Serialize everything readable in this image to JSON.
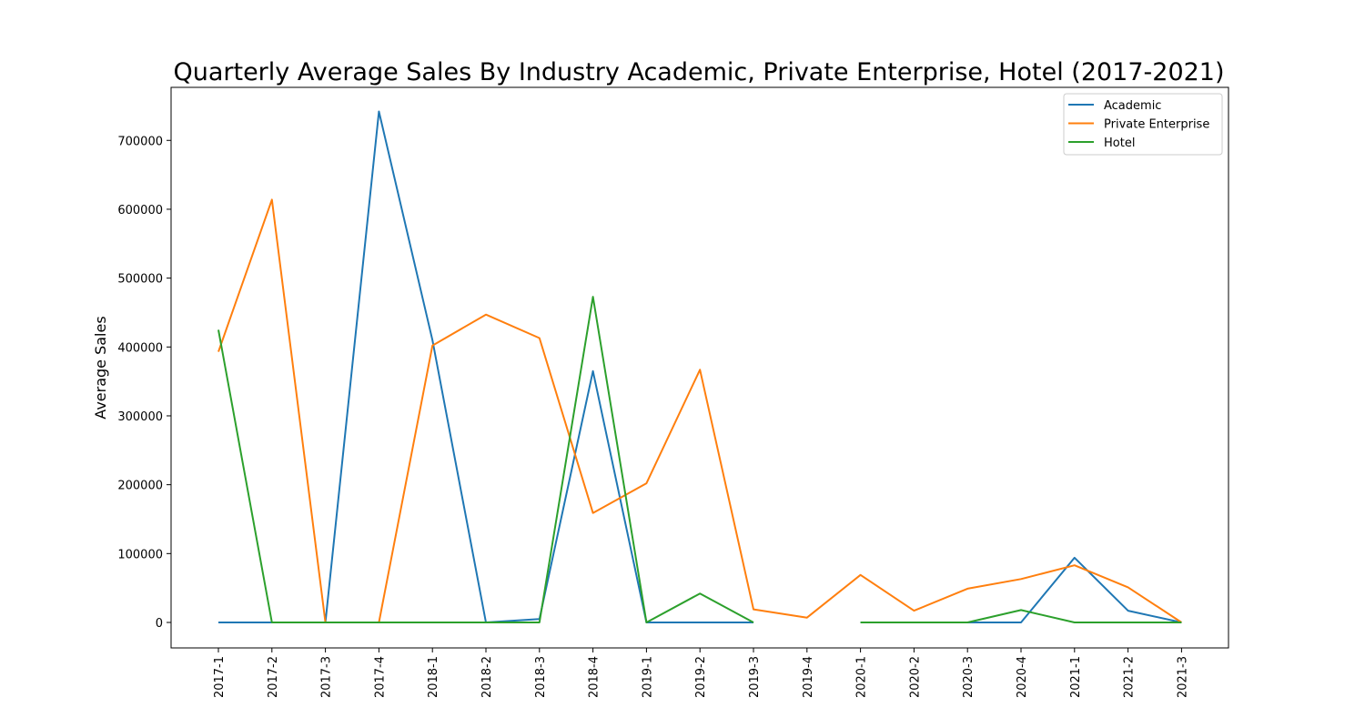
{
  "chart_data": {
    "type": "line",
    "title": "Quarterly Average Sales By Industry Academic, Private Enterprise, Hotel (2017-2021)",
    "xlabel": "",
    "ylabel": "Average Sales",
    "categories": [
      "2017-1",
      "2017-2",
      "2017-3",
      "2017-4",
      "2018-1",
      "2018-2",
      "2018-3",
      "2018-4",
      "2019-1",
      "2019-2",
      "2019-3",
      "2019-4",
      "2020-1",
      "2020-2",
      "2020-3",
      "2020-4",
      "2021-1",
      "2021-2",
      "2021-3"
    ],
    "yticks": [
      "0",
      "100000",
      "200000",
      "300000",
      "400000",
      "500000",
      "600000",
      "700000"
    ],
    "ylim": [
      -37000,
      777000
    ],
    "grid": false,
    "legend_position": "top-right",
    "series": [
      {
        "name": "Academic",
        "color": "#1f77b4",
        "values": [
          0,
          0,
          0,
          742000,
          410000,
          0,
          5000,
          365000,
          0,
          0,
          0,
          null,
          0,
          0,
          0,
          0,
          94000,
          17000,
          0
        ]
      },
      {
        "name": "Private Enterprise",
        "color": "#ff7f0e",
        "values": [
          393000,
          614000,
          0,
          0,
          402000,
          447000,
          413000,
          159000,
          202000,
          367000,
          19000,
          7000,
          69000,
          17000,
          49000,
          63000,
          83000,
          51000,
          0
        ]
      },
      {
        "name": "Hotel",
        "color": "#2ca02c",
        "values": [
          425000,
          0,
          0,
          0,
          0,
          0,
          0,
          473000,
          0,
          42000,
          0,
          null,
          0,
          0,
          0,
          18000,
          0,
          0,
          0
        ]
      }
    ]
  }
}
